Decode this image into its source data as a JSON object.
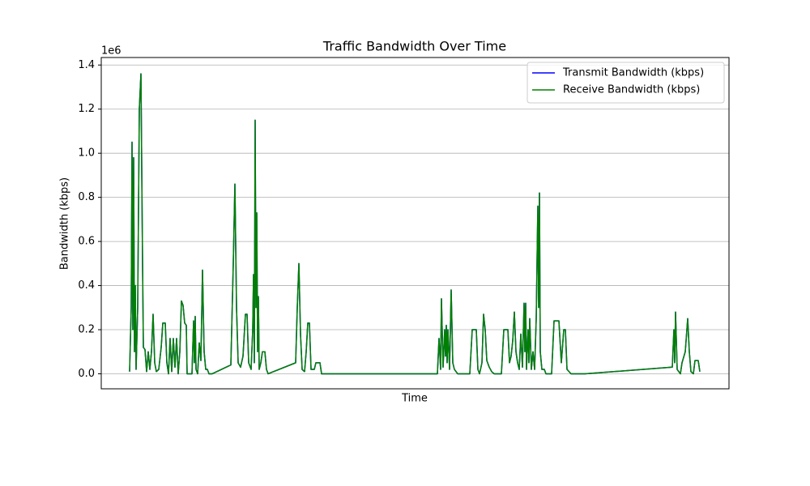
{
  "chart_data": {
    "type": "line",
    "title": "Traffic Bandwidth Over Time",
    "xlabel": "Time",
    "ylabel": "Bandwidth (kbps)",
    "offset_label": "1e6",
    "x": [
      35,
      37,
      38,
      39,
      40,
      41,
      42,
      43,
      45,
      47,
      49,
      51,
      52,
      54,
      56,
      58,
      60,
      62,
      64,
      66,
      68,
      71,
      74,
      76,
      79,
      81,
      83,
      85,
      87,
      89,
      91,
      93,
      95,
      97,
      99,
      101,
      103,
      105,
      106,
      112,
      114,
      115,
      116,
      117,
      119,
      121,
      123,
      125,
      127,
      129,
      131,
      133,
      137,
      160,
      163,
      165,
      167,
      169,
      172,
      175,
      178,
      180,
      182,
      185,
      187,
      188,
      189,
      190,
      191,
      192,
      193,
      194,
      195,
      197,
      199,
      202,
      204,
      206,
      240,
      242,
      244,
      246,
      248,
      251,
      253,
      255,
      257,
      259,
      263,
      265,
      270,
      272,
      415,
      417,
      419,
      420,
      422,
      424,
      425,
      426,
      427,
      428,
      430,
      432,
      434,
      436,
      440,
      455,
      458,
      463,
      465,
      467,
      470,
      472,
      474,
      476,
      479,
      482,
      485,
      494,
      497,
      502,
      504,
      506,
      508,
      510,
      512,
      514,
      516,
      518,
      520,
      522,
      523,
      524,
      525,
      527,
      528,
      529,
      531,
      533,
      535,
      537,
      539,
      540,
      541,
      542,
      544,
      547,
      549,
      556,
      559,
      565,
      568,
      571,
      573,
      575,
      580,
      597,
      705,
      707,
      708,
      709,
      711,
      713,
      715,
      717,
      721,
      724,
      726,
      728,
      731,
      733,
      737,
      739
    ],
    "xlim": [
      0,
      775
    ],
    "series": [
      {
        "name": "Transmit Bandwidth (kbps)",
        "color": "#0000ff",
        "values": [
          10000,
          300000,
          1050000,
          200000,
          980000,
          100000,
          400000,
          20000,
          300000,
          1200000,
          1360000,
          500000,
          120000,
          110000,
          10000,
          100000,
          20000,
          100000,
          270000,
          50000,
          10000,
          20000,
          120000,
          230000,
          230000,
          50000,
          0,
          160000,
          10000,
          160000,
          30000,
          160000,
          0,
          100000,
          330000,
          310000,
          230000,
          220000,
          0,
          0,
          240000,
          50000,
          260000,
          20000,
          0,
          140000,
          60000,
          470000,
          100000,
          20000,
          20000,
          0,
          0,
          40000,
          500000,
          860000,
          300000,
          50000,
          30000,
          80000,
          270000,
          270000,
          50000,
          20000,
          200000,
          450000,
          50000,
          1150000,
          300000,
          730000,
          100000,
          350000,
          20000,
          50000,
          100000,
          100000,
          20000,
          0,
          50000,
          300000,
          500000,
          180000,
          20000,
          10000,
          100000,
          230000,
          230000,
          20000,
          20000,
          50000,
          50000,
          0,
          0,
          160000,
          20000,
          340000,
          30000,
          200000,
          80000,
          220000,
          50000,
          200000,
          20000,
          380000,
          50000,
          20000,
          0,
          0,
          200000,
          200000,
          20000,
          0,
          50000,
          270000,
          200000,
          60000,
          30000,
          10000,
          0,
          0,
          200000,
          200000,
          50000,
          80000,
          150000,
          280000,
          100000,
          50000,
          20000,
          180000,
          30000,
          320000,
          100000,
          320000,
          20000,
          200000,
          50000,
          250000,
          20000,
          100000,
          20000,
          250000,
          760000,
          300000,
          820000,
          100000,
          20000,
          20000,
          0,
          0,
          240000,
          240000,
          50000,
          200000,
          200000,
          20000,
          0,
          0,
          30000,
          200000,
          50000,
          280000,
          20000,
          10000,
          0,
          50000,
          100000,
          250000,
          100000,
          10000,
          0,
          60000,
          60000,
          10000
        ]
      },
      {
        "name": "Receive Bandwidth (kbps)",
        "color": "#008000",
        "values": [
          10000,
          300000,
          1050000,
          200000,
          980000,
          100000,
          400000,
          20000,
          300000,
          1200000,
          1360000,
          500000,
          120000,
          110000,
          10000,
          100000,
          20000,
          100000,
          270000,
          50000,
          10000,
          20000,
          120000,
          230000,
          230000,
          50000,
          0,
          160000,
          10000,
          160000,
          30000,
          160000,
          0,
          100000,
          330000,
          310000,
          230000,
          220000,
          0,
          0,
          240000,
          50000,
          260000,
          20000,
          0,
          140000,
          60000,
          470000,
          100000,
          20000,
          20000,
          0,
          0,
          40000,
          500000,
          860000,
          300000,
          50000,
          30000,
          80000,
          270000,
          270000,
          50000,
          20000,
          200000,
          450000,
          50000,
          1150000,
          300000,
          730000,
          100000,
          350000,
          20000,
          50000,
          100000,
          100000,
          20000,
          0,
          50000,
          300000,
          500000,
          180000,
          20000,
          10000,
          100000,
          230000,
          230000,
          20000,
          20000,
          50000,
          50000,
          0,
          0,
          160000,
          20000,
          340000,
          30000,
          200000,
          80000,
          220000,
          50000,
          200000,
          20000,
          380000,
          50000,
          20000,
          0,
          0,
          200000,
          200000,
          20000,
          0,
          50000,
          270000,
          200000,
          60000,
          30000,
          10000,
          0,
          0,
          200000,
          200000,
          50000,
          80000,
          150000,
          280000,
          100000,
          50000,
          20000,
          180000,
          30000,
          320000,
          100000,
          320000,
          20000,
          200000,
          50000,
          250000,
          20000,
          100000,
          20000,
          250000,
          760000,
          300000,
          820000,
          100000,
          20000,
          20000,
          0,
          0,
          240000,
          240000,
          50000,
          200000,
          200000,
          20000,
          0,
          0,
          30000,
          200000,
          50000,
          280000,
          20000,
          10000,
          0,
          50000,
          100000,
          250000,
          100000,
          10000,
          0,
          60000,
          60000,
          10000
        ]
      }
    ],
    "ylim": [
      -68000,
      1434000
    ],
    "yticks": [
      {
        "value": 0,
        "label": "0.0"
      },
      {
        "value": 200000,
        "label": "0.2"
      },
      {
        "value": 400000,
        "label": "0.4"
      },
      {
        "value": 600000,
        "label": "0.6"
      },
      {
        "value": 800000,
        "label": "0.8"
      },
      {
        "value": 1000000,
        "label": "1.0"
      },
      {
        "value": 1200000,
        "label": "1.2"
      },
      {
        "value": 1400000,
        "label": "1.4"
      }
    ],
    "grid": true,
    "legend": "upper right"
  }
}
